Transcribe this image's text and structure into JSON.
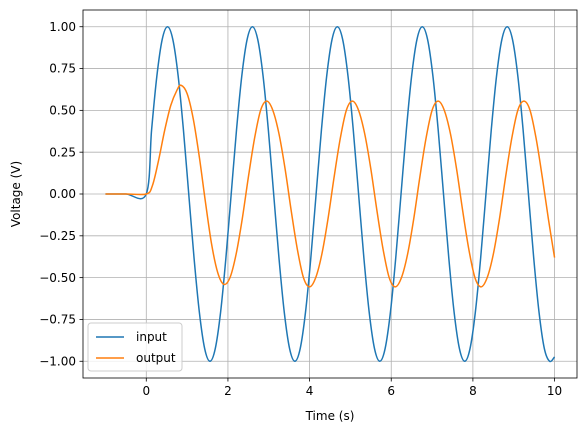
{
  "chart_data": {
    "type": "line",
    "xlabel": "Time (s)",
    "ylabel": "Voltage (V)",
    "xlim": [
      -1.55,
      10.55
    ],
    "ylim": [
      -1.1,
      1.1
    ],
    "xticks": [
      0,
      2,
      4,
      6,
      8,
      10
    ],
    "xtick_labels": [
      "0",
      "2",
      "4",
      "6",
      "8",
      "10"
    ],
    "yticks": [
      -1.0,
      -0.75,
      -0.5,
      -0.25,
      0.0,
      0.25,
      0.5,
      0.75,
      1.0
    ],
    "ytick_labels": [
      "−1.00",
      "−0.75",
      "−0.50",
      "−0.25",
      "0.00",
      "0.25",
      "0.50",
      "0.75",
      "1.00"
    ],
    "grid": true,
    "legend_position": "lower-left",
    "series": [
      {
        "name": "input",
        "color": "#1f77b4",
        "x": [
          -1.0,
          -0.5,
          0.0,
          0.13,
          0.26,
          0.39,
          0.52,
          0.65,
          0.78,
          0.91,
          1.04,
          1.17,
          1.3,
          1.43,
          1.56,
          1.69,
          1.82,
          1.95,
          2.08,
          2.21,
          2.34,
          2.47,
          2.6,
          2.73,
          2.86,
          2.99,
          3.12,
          3.25,
          3.38,
          3.51,
          3.64,
          3.77,
          3.9,
          4.03,
          4.16,
          4.29,
          4.42,
          4.55,
          4.68,
          4.81,
          4.94,
          5.07,
          5.2,
          5.33,
          5.46,
          5.59,
          5.72,
          5.85,
          5.98,
          6.11,
          6.24,
          6.37,
          6.5,
          6.63,
          6.76,
          6.89,
          7.02,
          7.15,
          7.28,
          7.41,
          7.54,
          7.67,
          7.8,
          7.93,
          8.06,
          8.19,
          8.32,
          8.45,
          8.58,
          8.71,
          8.84,
          8.97,
          9.1,
          9.23,
          9.36,
          9.49,
          9.62,
          9.75,
          9.88,
          10.0
        ],
        "y": [
          0.0,
          0.0,
          0.0,
          0.383,
          0.707,
          0.924,
          1.0,
          0.924,
          0.707,
          0.383,
          0.0,
          -0.383,
          -0.707,
          -0.924,
          -1.0,
          -0.924,
          -0.707,
          -0.383,
          0.0,
          0.383,
          0.707,
          0.924,
          1.0,
          0.924,
          0.707,
          0.383,
          0.0,
          -0.383,
          -0.707,
          -0.924,
          -1.0,
          -0.924,
          -0.707,
          -0.383,
          0.0,
          0.383,
          0.707,
          0.924,
          1.0,
          0.924,
          0.707,
          0.383,
          0.0,
          -0.383,
          -0.707,
          -0.924,
          -1.0,
          -0.924,
          -0.707,
          -0.383,
          0.0,
          0.383,
          0.707,
          0.924,
          1.0,
          0.924,
          0.707,
          0.383,
          0.0,
          -0.383,
          -0.707,
          -0.924,
          -1.0,
          -0.924,
          -0.707,
          -0.383,
          0.0,
          0.383,
          0.707,
          0.924,
          1.0,
          0.924,
          0.707,
          0.383,
          0.0,
          -0.383,
          -0.707,
          -0.924,
          -1.0,
          -0.974
        ]
      },
      {
        "name": "output",
        "color": "#ff7f0e",
        "x": [
          -1.0,
          -0.5,
          0.0,
          0.15,
          0.3,
          0.45,
          0.6,
          0.75,
          0.85,
          1.0,
          1.15,
          1.3,
          1.45,
          1.6,
          1.75,
          1.9,
          2.05,
          2.2,
          2.35,
          2.5,
          2.65,
          2.8,
          2.95,
          3.1,
          3.25,
          3.4,
          3.55,
          3.7,
          3.85,
          4.0,
          4.15,
          4.3,
          4.45,
          4.6,
          4.75,
          4.9,
          5.05,
          5.2,
          5.35,
          5.5,
          5.65,
          5.8,
          5.95,
          6.1,
          6.25,
          6.4,
          6.55,
          6.7,
          6.85,
          7.0,
          7.15,
          7.3,
          7.45,
          7.6,
          7.75,
          7.9,
          8.05,
          8.2,
          8.35,
          8.5,
          8.65,
          8.8,
          8.95,
          9.1,
          9.25,
          9.4,
          9.55,
          9.7,
          9.85,
          10.0
        ],
        "y": [
          0.0,
          0.0,
          0.0,
          0.05,
          0.2,
          0.38,
          0.53,
          0.62,
          0.65,
          0.6,
          0.45,
          0.22,
          -0.05,
          -0.3,
          -0.47,
          -0.54,
          -0.5,
          -0.36,
          -0.15,
          0.1,
          0.33,
          0.5,
          0.555,
          0.5,
          0.36,
          0.15,
          -0.1,
          -0.33,
          -0.5,
          -0.555,
          -0.5,
          -0.36,
          -0.15,
          0.1,
          0.33,
          0.5,
          0.555,
          0.5,
          0.36,
          0.15,
          -0.1,
          -0.33,
          -0.5,
          -0.555,
          -0.5,
          -0.36,
          -0.15,
          0.1,
          0.33,
          0.5,
          0.555,
          0.5,
          0.36,
          0.15,
          -0.1,
          -0.33,
          -0.5,
          -0.555,
          -0.5,
          -0.36,
          -0.15,
          0.1,
          0.33,
          0.5,
          0.555,
          0.5,
          0.33,
          0.1,
          -0.15,
          -0.38
        ]
      }
    ]
  }
}
